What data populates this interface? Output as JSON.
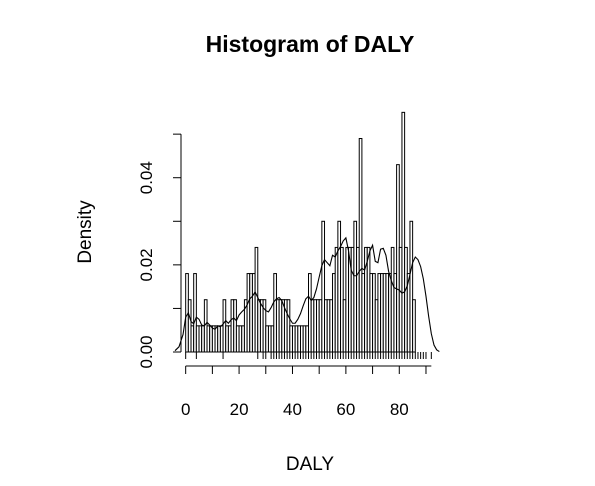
{
  "chart_data": {
    "type": "bar",
    "title": "Histogram of DALY",
    "xlabel": "DALY",
    "ylabel": "Density",
    "xlim": [
      -4,
      96
    ],
    "ylim": [
      0,
      0.056
    ],
    "x_ticks": [
      0,
      20,
      40,
      60,
      80
    ],
    "x_tick_labels": [
      "0",
      "20",
      "40",
      "60",
      "80"
    ],
    "y_ticks": [
      0,
      0.02,
      0.04
    ],
    "y_tick_labels": [
      "0.00",
      "0.02",
      "0.04"
    ],
    "bin_width": 1,
    "bin_start": 0,
    "values": [
      0.018,
      0.012,
      0.006,
      0.018,
      0.006,
      0.006,
      0.006,
      0.012,
      0.006,
      0.006,
      0.006,
      0.006,
      0.006,
      0.006,
      0.012,
      0.006,
      0.006,
      0.012,
      0.012,
      0.006,
      0.006,
      0.006,
      0.012,
      0.018,
      0.018,
      0.018,
      0.024,
      0.012,
      0.012,
      0.012,
      0.006,
      0.006,
      0.006,
      0.018,
      0.012,
      0.012,
      0.012,
      0.012,
      0.012,
      0.006,
      0.006,
      0.006,
      0.006,
      0.006,
      0.006,
      0.006,
      0.018,
      0.012,
      0.012,
      0.012,
      0.012,
      0.03,
      0.012,
      0.012,
      0.012,
      0.018,
      0.024,
      0.03,
      0.024,
      0.012,
      0.024,
      0.024,
      0.024,
      0.03,
      0.024,
      0.049,
      0.018,
      0.024,
      0.024,
      0.018,
      0.018,
      0.012,
      0.018,
      0.018,
      0.018,
      0.018,
      0.018,
      0.024,
      0.018,
      0.043,
      0.024,
      0.055,
      0.024,
      0.018,
      0.03,
      0.012
    ],
    "density": [
      [
        -4,
        0.0003
      ],
      [
        -2.5,
        0.0012
      ],
      [
        -1,
        0.004
      ],
      [
        0,
        0.008
      ],
      [
        1,
        0.009
      ],
      [
        2,
        0.007
      ],
      [
        3,
        0.0065
      ],
      [
        4,
        0.008
      ],
      [
        5,
        0.0075
      ],
      [
        6,
        0.0062
      ],
      [
        7,
        0.006
      ],
      [
        8,
        0.0068
      ],
      [
        9,
        0.0062
      ],
      [
        10,
        0.0055
      ],
      [
        11,
        0.0052
      ],
      [
        12,
        0.006
      ],
      [
        13,
        0.0058
      ],
      [
        14,
        0.0064
      ],
      [
        15,
        0.0072
      ],
      [
        16,
        0.0066
      ],
      [
        17,
        0.0074
      ],
      [
        18,
        0.0078
      ],
      [
        19,
        0.0072
      ],
      [
        20,
        0.0085
      ],
      [
        21,
        0.0092
      ],
      [
        22,
        0.0098
      ],
      [
        23,
        0.0108
      ],
      [
        24,
        0.0122
      ],
      [
        25,
        0.0128
      ],
      [
        26,
        0.0138
      ],
      [
        27,
        0.0125
      ],
      [
        28,
        0.0112
      ],
      [
        29,
        0.0102
      ],
      [
        30,
        0.0095
      ],
      [
        31,
        0.0092
      ],
      [
        32,
        0.0102
      ],
      [
        33,
        0.0115
      ],
      [
        34,
        0.0122
      ],
      [
        35,
        0.0125
      ],
      [
        36,
        0.0118
      ],
      [
        37,
        0.0102
      ],
      [
        38,
        0.0088
      ],
      [
        39,
        0.0076
      ],
      [
        40,
        0.0066
      ],
      [
        41,
        0.0066
      ],
      [
        42,
        0.0075
      ],
      [
        43,
        0.0088
      ],
      [
        44,
        0.0106
      ],
      [
        45,
        0.0122
      ],
      [
        46,
        0.0128
      ],
      [
        47,
        0.0118
      ],
      [
        48,
        0.0125
      ],
      [
        49,
        0.0145
      ],
      [
        50,
        0.0172
      ],
      [
        51,
        0.0198
      ],
      [
        52,
        0.0212
      ],
      [
        53,
        0.0205
      ],
      [
        54,
        0.0198
      ],
      [
        55,
        0.0222
      ],
      [
        56,
        0.0218
      ],
      [
        57,
        0.0232
      ],
      [
        58,
        0.0242
      ],
      [
        59,
        0.0255
      ],
      [
        60,
        0.0262
      ],
      [
        61,
        0.0232
      ],
      [
        62,
        0.0188
      ],
      [
        63,
        0.0175
      ],
      [
        64,
        0.0175
      ],
      [
        65,
        0.0185
      ],
      [
        66,
        0.0192
      ],
      [
        67,
        0.0188
      ],
      [
        68,
        0.0208
      ],
      [
        69,
        0.0232
      ],
      [
        70,
        0.0245
      ],
      [
        71,
        0.0208
      ],
      [
        72,
        0.0205
      ],
      [
        73,
        0.0236
      ],
      [
        74,
        0.0238
      ],
      [
        75,
        0.0222
      ],
      [
        76,
        0.0185
      ],
      [
        77,
        0.0164
      ],
      [
        78,
        0.0148
      ],
      [
        79,
        0.0145
      ],
      [
        80,
        0.0142
      ],
      [
        81,
        0.0135
      ],
      [
        82,
        0.0138
      ],
      [
        83,
        0.0152
      ],
      [
        84,
        0.0178
      ],
      [
        85,
        0.0205
      ],
      [
        86,
        0.0218
      ],
      [
        87,
        0.0212
      ],
      [
        88,
        0.0196
      ],
      [
        89,
        0.0168
      ],
      [
        90,
        0.0128
      ],
      [
        91,
        0.0082
      ],
      [
        92,
        0.0042
      ],
      [
        93,
        0.0016
      ],
      [
        94,
        0.0005
      ],
      [
        95,
        0.0001
      ]
    ],
    "rug": [
      0,
      4,
      14,
      27,
      29,
      30,
      32,
      33,
      34,
      35,
      36,
      37,
      38,
      39,
      40,
      41,
      42,
      43,
      44,
      45,
      46,
      47,
      48,
      49,
      50,
      51,
      52,
      53,
      54,
      55,
      56,
      57,
      58,
      59,
      60,
      61,
      62,
      63,
      64,
      65,
      66,
      67,
      68,
      69,
      70,
      71,
      72,
      73,
      74,
      75,
      76,
      77,
      78,
      79,
      80,
      81,
      82,
      83,
      84,
      85,
      86,
      87,
      88,
      89,
      90,
      92
    ],
    "grid": false,
    "legend": "none"
  }
}
